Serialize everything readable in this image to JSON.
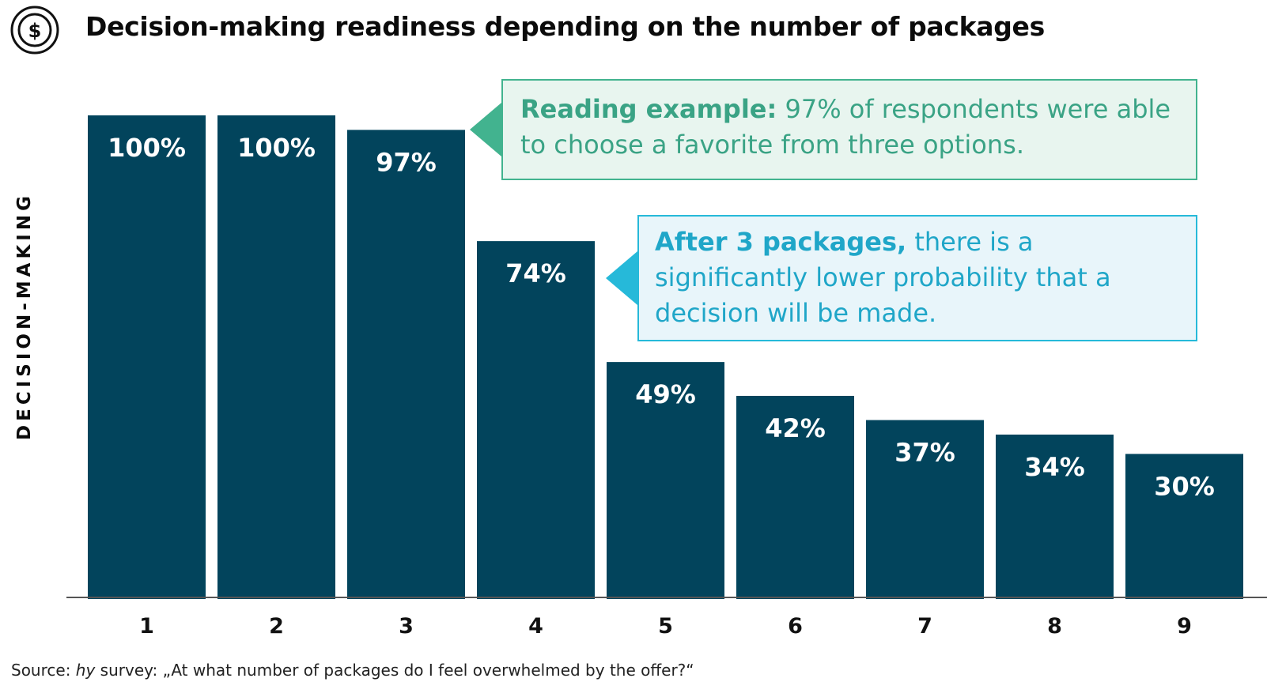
{
  "title": "Decision-making readiness depending on the number of packages",
  "icon": "dollar-coin-icon",
  "colors": {
    "bar": "#02445c",
    "axis": "#555555",
    "callout_green": "#42b38f",
    "callout_blue": "#26b9d9"
  },
  "callouts": [
    {
      "bold": "Reading example:",
      "text": " 97% of respondents were able to choose a favorite from three options."
    },
    {
      "bold": "After 3 packages,",
      "text": " there is a significantly lower probability that a decision will be made."
    }
  ],
  "source": {
    "prefix": "Source: ",
    "italic": "hy",
    "text": " survey: „At what number of packages do I feel overwhelmed by the offer?“"
  },
  "chart_data": {
    "type": "bar",
    "categories": [
      "1",
      "2",
      "3",
      "4",
      "5",
      "6",
      "7",
      "8",
      "9"
    ],
    "values": [
      100,
      100,
      97,
      74,
      49,
      42,
      37,
      34,
      30
    ],
    "labels": [
      "100%",
      "100%",
      "97%",
      "74%",
      "49%",
      "42%",
      "37%",
      "34%",
      "30%"
    ],
    "title": "Decision-making readiness depending on the number of packages",
    "xlabel": "",
    "ylabel": "DECISION-MAKING",
    "ylim": [
      0,
      100
    ],
    "grid": false,
    "legend": "none"
  }
}
